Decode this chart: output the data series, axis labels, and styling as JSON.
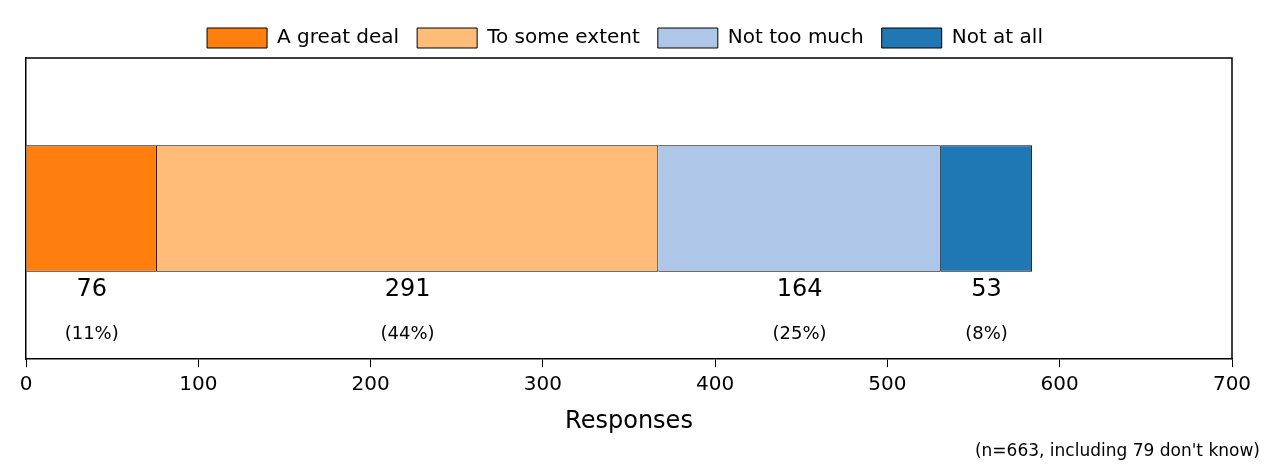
{
  "chart_data": {
    "type": "bar",
    "orientation": "horizontal",
    "stacked": true,
    "xlabel": "Responses",
    "categories": [
      null
    ],
    "series": [
      {
        "name": "A great deal",
        "color": "#ff7f0e",
        "values": [
          76
        ],
        "value_labels": [
          "76"
        ]
      },
      {
        "name": "To some extent",
        "color": "#ffbb78",
        "values": [
          291
        ],
        "value_labels": [
          "291"
        ]
      },
      {
        "name": "Not too much",
        "color": "#aec7e8",
        "values": [
          164
        ],
        "value_labels": [
          "164"
        ]
      },
      {
        "name": "Not at all",
        "color": "#1f77b4",
        "values": [
          53
        ],
        "value_labels": [
          "53"
        ]
      }
    ],
    "xlim": [
      0,
      700
    ],
    "xticks": [
      0,
      100,
      200,
      300,
      400,
      500,
      600,
      700
    ],
    "grid": false,
    "legend": "top",
    "annotations": [
      "(11%)",
      "(44%)",
      "(25%)",
      "(8%)",
      "(n=663, including 79 don't know)"
    ]
  }
}
